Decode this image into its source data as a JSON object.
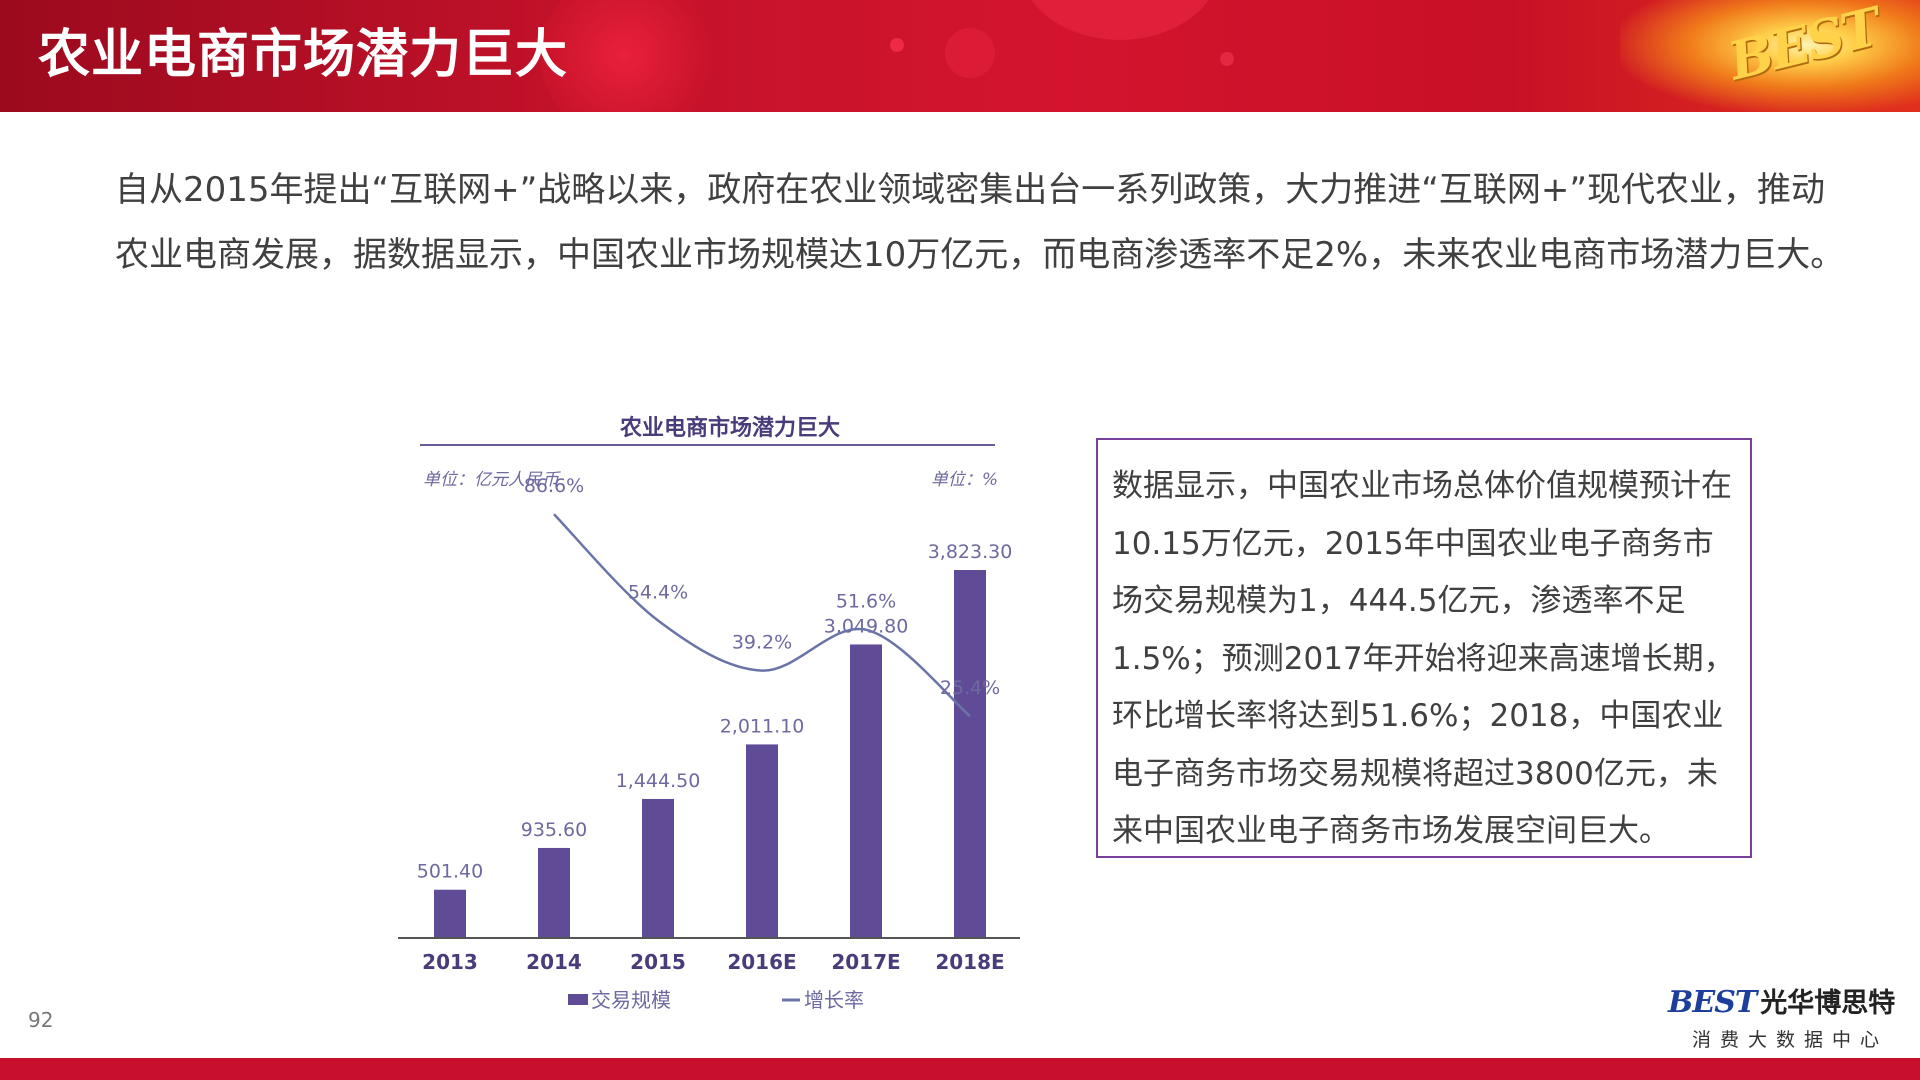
{
  "header": {
    "title": "农业电商市场潜力巨大",
    "logo_text": "BEST"
  },
  "intro_text": "自从2015年提出“互联网+”战略以来，政府在农业领域密集出台一系列政策，大力推进“互联网+”现代农业，推动农业电商发展，据数据显示，中国农业市场规模达10万亿元，而电商渗透率不足2%，未来农业电商市场潜力巨大。",
  "info_box": {
    "text": "数据显示，中国农业市场总体价值规模预计在10.15万亿元，2015年中国农业电子商务市场交易规模为1，444.5亿元，渗透率不足1.5%；预测2017年开始将迎来高速增长期，环比增长率将达到51.6%；2018，中国农业电子商务市场交易规模将超过3800亿元，未来中国农业电子商务市场发展空间巨大。"
  },
  "chart_data": {
    "type": "bar+line",
    "title": "农业电商市场潜力巨大",
    "left_unit": "单位：亿元人民币",
    "right_unit": "单位：%",
    "categories": [
      "2013",
      "2014",
      "2015",
      "2016E",
      "2017E",
      "2018E"
    ],
    "series": [
      {
        "name": "交易规模",
        "type": "bar",
        "values": [
          501.4,
          935.6,
          1444.5,
          2011.1,
          3049.8,
          3823.3
        ],
        "labels": [
          "501.40",
          "935.60",
          "1,444.50",
          "2,011.10",
          "3,049.80",
          "3,823.30"
        ]
      },
      {
        "name": "增长率",
        "type": "line",
        "values": [
          null,
          86.6,
          54.4,
          39.2,
          51.6,
          25.4
        ],
        "labels": [
          "",
          "86.6%",
          "54.4%",
          "39.2%",
          "51.6%",
          "25.4%"
        ]
      }
    ],
    "bar_color": "#5f4b96",
    "line_color": "#6a74a8",
    "bar_ylim": [
      0,
      4000
    ],
    "line_ylim": [
      0,
      100
    ],
    "legend_position": "bottom"
  },
  "footer": {
    "page_number": "92",
    "logo_best": "BEST",
    "logo_cn": "光华博思特",
    "logo_sub": "消费大数据中心"
  }
}
